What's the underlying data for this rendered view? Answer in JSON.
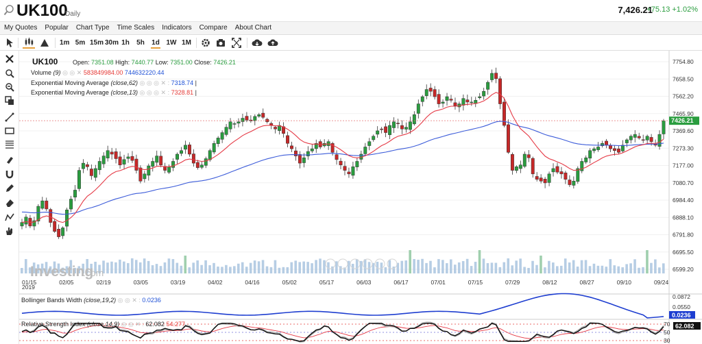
{
  "header": {
    "symbol": "UK100",
    "interval": "Daily",
    "last_price": "7,426.21",
    "change": "+75.13 +1.02%"
  },
  "menu": [
    "My Quotes",
    "Popular",
    "Chart Type",
    "Time Scales",
    "Indicators",
    "Compare",
    "About Chart"
  ],
  "toolbar": {
    "intervals": [
      "1m",
      "5m",
      "15m",
      "30m",
      "1h",
      "5h",
      "1d",
      "1W",
      "1M"
    ],
    "selected_interval": "1d",
    "icons": [
      "cursor-icon",
      "candles-icon",
      "area-icon",
      "gear-icon",
      "camera-icon",
      "fullscreen-icon",
      "cloud-download-icon",
      "cloud-upload-icon"
    ]
  },
  "left_tools": [
    "cross-icon",
    "zoom-select-icon",
    "zoom-out-icon",
    "copy-icon",
    "trend-line-icon",
    "rectangle-icon",
    "fibonacci-icon",
    "brush-icon",
    "magnet-icon",
    "pen-icon",
    "eraser-icon",
    "pattern-icon",
    "hand-icon"
  ],
  "legend": {
    "title": "UK100",
    "open_label": "Open:",
    "open": "7351.08",
    "high_label": "High:",
    "high": "7440.77",
    "low_label": "Low:",
    "low": "7351.00",
    "close_label": "Close:",
    "close": "7426.21",
    "volume_name": "Volume",
    "volume_param": "(9)",
    "volume_1": "583849984.00",
    "volume_2": "744632220.44",
    "ema62_name": "Exponential Moving Average",
    "ema62_param": "(close,62)",
    "ema62_value": "7318.74",
    "ema13_name": "Exponential Moving Average",
    "ema13_param": "(close,13)",
    "ema13_value": "7328.81",
    "bbw_name": "Bollinger Bands Width",
    "bbw_param": "(close,19,2)",
    "bbw_value": "0.0236",
    "rsi_name": "Relative Strength Index",
    "rsi_param": "(close,14,9)",
    "rsi_value_1": "62.082",
    "rsi_value_2": "54.277"
  },
  "watermark": {
    "brand": "Investing",
    "suffix": ".com"
  },
  "colors": {
    "up": "#2a9d3f",
    "down": "#c62828",
    "ema62": "#3b5bd9",
    "ema13": "#e53945",
    "bbw": "#1e3ed0",
    "rsi": "#111111",
    "rsi_signal": "#e53945",
    "price_tag": "#2a9d3f",
    "volume": "#a9c4df"
  },
  "chart_data": {
    "type": "candlestick",
    "date_ticks": [
      "01/15",
      "02/05",
      "02/19",
      "03/05",
      "03/19",
      "04/02",
      "04/16",
      "05/02",
      "05/17",
      "06/03",
      "06/17",
      "07/01",
      "07/15",
      "07/29",
      "08/12",
      "08/27",
      "09/10",
      "09/24"
    ],
    "year_label": "2019",
    "price_ticks": [
      "7754.80",
      "7658.50",
      "7562.20",
      "7465.90",
      "7369.60",
      "7273.30",
      "7177.00",
      "7080.70",
      "6984.40",
      "6888.10",
      "6791.80",
      "6695.50",
      "6599.20"
    ],
    "ylim": [
      6599.2,
      7754.8
    ],
    "last_price_tag": "7426.21",
    "last_price": 7426.21,
    "close_series": [
      6860,
      6890,
      6840,
      6870,
      6950,
      6980,
      6935,
      6860,
      6810,
      6780,
      6830,
      6930,
      6990,
      7040,
      7150,
      7190,
      7170,
      7120,
      7160,
      7200,
      7230,
      7260,
      7240,
      7215,
      7180,
      7210,
      7225,
      7205,
      7150,
      7090,
      7130,
      7175,
      7200,
      7230,
      7180,
      7150,
      7170,
      7200,
      7240,
      7260,
      7290,
      7240,
      7190,
      7165,
      7180,
      7215,
      7260,
      7300,
      7330,
      7360,
      7390,
      7420,
      7410,
      7420,
      7440,
      7430,
      7425,
      7450,
      7460,
      7445,
      7420,
      7400,
      7380,
      7400,
      7355,
      7300,
      7270,
      7230,
      7190,
      7220,
      7255,
      7270,
      7300,
      7280,
      7300,
      7310,
      7250,
      7210,
      7180,
      7150,
      7130,
      7170,
      7200,
      7240,
      7280,
      7310,
      7340,
      7370,
      7380,
      7360,
      7400,
      7420,
      7410,
      7380,
      7390,
      7420,
      7460,
      7520,
      7560,
      7600,
      7590,
      7560,
      7520,
      7530,
      7560,
      7540,
      7510,
      7520,
      7550,
      7530,
      7530,
      7540,
      7560,
      7590,
      7640,
      7690,
      7660,
      7520,
      7400,
      7250,
      7150,
      7170,
      7180,
      7240,
      7220,
      7130,
      7100,
      7090,
      7080,
      7130,
      7160,
      7140,
      7130,
      7100,
      7070,
      7090,
      7160,
      7200,
      7220,
      7260,
      7270,
      7280,
      7300,
      7290,
      7270,
      7260,
      7250,
      7290,
      7320,
      7340,
      7350,
      7330,
      7320,
      7340,
      7310,
      7290,
      7350,
      7426
    ],
    "indicators": {
      "bbw_ticks": [
        "0.0872",
        "0.0550"
      ],
      "bbw_last_tag": "0.0236",
      "bbw_ylim": [
        0.0236,
        0.0872
      ],
      "rsi_ticks": [
        "70",
        "50",
        "30"
      ],
      "rsi_last_tag": "62.082",
      "rsi_ylim": [
        25,
        75
      ]
    }
  }
}
